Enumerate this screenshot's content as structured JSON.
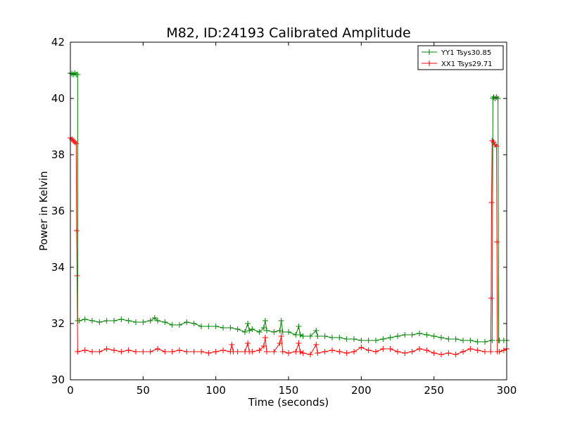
{
  "chart_data": {
    "type": "line",
    "title": "M82, ID:24193 Calibrated Amplitude",
    "xlabel": "Time (seconds)",
    "ylabel": "Power in Kelvin",
    "xlim": [
      0,
      300
    ],
    "ylim": [
      30,
      42
    ],
    "x_ticks": [
      0,
      50,
      100,
      150,
      200,
      250,
      300
    ],
    "y_ticks": [
      30,
      32,
      34,
      36,
      38,
      40,
      42
    ],
    "grid": false,
    "legend_position": "top-right",
    "marker": "+",
    "series": [
      {
        "name": "YY1 Tsys30.85",
        "color": "#008000",
        "points": [
          [
            0,
            40.9
          ],
          [
            1,
            40.88
          ],
          [
            2,
            40.85
          ],
          [
            3,
            40.9
          ],
          [
            4,
            40.85
          ],
          [
            5,
            40.85
          ],
          [
            5,
            32.1
          ],
          [
            6,
            32.1
          ],
          [
            10,
            32.15
          ],
          [
            15,
            32.1
          ],
          [
            20,
            32.05
          ],
          [
            25,
            32.1
          ],
          [
            30,
            32.1
          ],
          [
            35,
            32.15
          ],
          [
            40,
            32.1
          ],
          [
            45,
            32.05
          ],
          [
            50,
            32.05
          ],
          [
            55,
            32.1
          ],
          [
            58,
            32.2
          ],
          [
            60,
            32.1
          ],
          [
            65,
            32.05
          ],
          [
            70,
            31.95
          ],
          [
            75,
            31.95
          ],
          [
            80,
            32.05
          ],
          [
            85,
            32.0
          ],
          [
            90,
            31.9
          ],
          [
            95,
            31.9
          ],
          [
            100,
            31.9
          ],
          [
            105,
            31.85
          ],
          [
            110,
            31.85
          ],
          [
            115,
            31.8
          ],
          [
            120,
            31.7
          ],
          [
            122,
            32.0
          ],
          [
            123,
            31.75
          ],
          [
            125,
            31.8
          ],
          [
            130,
            31.7
          ],
          [
            133,
            31.85
          ],
          [
            134,
            32.1
          ],
          [
            135,
            31.75
          ],
          [
            140,
            31.7
          ],
          [
            144,
            31.75
          ],
          [
            145,
            32.1
          ],
          [
            146,
            31.7
          ],
          [
            150,
            31.7
          ],
          [
            155,
            31.6
          ],
          [
            157,
            31.9
          ],
          [
            158,
            31.6
          ],
          [
            160,
            31.55
          ],
          [
            165,
            31.55
          ],
          [
            169,
            31.75
          ],
          [
            170,
            31.55
          ],
          [
            175,
            31.55
          ],
          [
            180,
            31.5
          ],
          [
            185,
            31.5
          ],
          [
            190,
            31.45
          ],
          [
            195,
            31.45
          ],
          [
            200,
            31.4
          ],
          [
            205,
            31.4
          ],
          [
            210,
            31.4
          ],
          [
            215,
            31.45
          ],
          [
            220,
            31.5
          ],
          [
            225,
            31.55
          ],
          [
            230,
            31.6
          ],
          [
            235,
            31.6
          ],
          [
            240,
            31.65
          ],
          [
            245,
            31.6
          ],
          [
            250,
            31.55
          ],
          [
            255,
            31.5
          ],
          [
            260,
            31.45
          ],
          [
            265,
            31.45
          ],
          [
            270,
            31.4
          ],
          [
            275,
            31.4
          ],
          [
            280,
            31.35
          ],
          [
            285,
            31.35
          ],
          [
            290,
            31.4
          ],
          [
            290.5,
            40.0
          ],
          [
            291,
            40.05
          ],
          [
            292,
            40.0
          ],
          [
            293,
            40.05
          ],
          [
            294,
            40.0
          ],
          [
            294.5,
            31.4
          ],
          [
            295,
            31.4
          ],
          [
            298,
            31.4
          ],
          [
            300,
            31.4
          ]
        ]
      },
      {
        "name": "XX1 Tsys29.71",
        "color": "#ff0000",
        "points": [
          [
            0,
            38.6
          ],
          [
            1,
            38.55
          ],
          [
            2,
            38.5
          ],
          [
            3,
            38.45
          ],
          [
            4,
            38.4
          ],
          [
            4.3,
            35.3
          ],
          [
            4.6,
            33.7
          ],
          [
            5,
            31.0
          ],
          [
            10,
            31.05
          ],
          [
            15,
            31.0
          ],
          [
            20,
            31.0
          ],
          [
            25,
            31.1
          ],
          [
            30,
            31.05
          ],
          [
            35,
            31.0
          ],
          [
            40,
            31.05
          ],
          [
            45,
            31.0
          ],
          [
            50,
            31.0
          ],
          [
            55,
            31.0
          ],
          [
            60,
            31.1
          ],
          [
            65,
            31.0
          ],
          [
            70,
            31.0
          ],
          [
            75,
            31.05
          ],
          [
            80,
            31.0
          ],
          [
            85,
            31.0
          ],
          [
            90,
            31.0
          ],
          [
            95,
            30.95
          ],
          [
            100,
            31.0
          ],
          [
            105,
            31.05
          ],
          [
            110,
            31.0
          ],
          [
            111,
            31.25
          ],
          [
            112,
            31.0
          ],
          [
            115,
            31.0
          ],
          [
            120,
            31.0
          ],
          [
            122,
            31.3
          ],
          [
            123,
            31.0
          ],
          [
            125,
            31.0
          ],
          [
            130,
            31.05
          ],
          [
            133,
            31.2
          ],
          [
            134,
            31.5
          ],
          [
            135,
            31.0
          ],
          [
            140,
            31.0
          ],
          [
            144,
            31.3
          ],
          [
            145,
            31.55
          ],
          [
            146,
            31.0
          ],
          [
            150,
            30.95
          ],
          [
            155,
            31.0
          ],
          [
            157,
            31.3
          ],
          [
            158,
            31.0
          ],
          [
            160,
            30.95
          ],
          [
            165,
            30.9
          ],
          [
            169,
            31.25
          ],
          [
            170,
            30.95
          ],
          [
            175,
            31.0
          ],
          [
            180,
            31.05
          ],
          [
            185,
            31.0
          ],
          [
            190,
            30.95
          ],
          [
            195,
            31.0
          ],
          [
            200,
            31.15
          ],
          [
            205,
            31.05
          ],
          [
            210,
            31.0
          ],
          [
            215,
            31.1
          ],
          [
            220,
            31.1
          ],
          [
            225,
            31.0
          ],
          [
            230,
            30.95
          ],
          [
            235,
            31.0
          ],
          [
            240,
            31.1
          ],
          [
            245,
            31.05
          ],
          [
            250,
            30.95
          ],
          [
            255,
            30.9
          ],
          [
            260,
            30.95
          ],
          [
            265,
            30.9
          ],
          [
            270,
            31.0
          ],
          [
            275,
            31.1
          ],
          [
            280,
            31.05
          ],
          [
            285,
            31.0
          ],
          [
            289,
            31.0
          ],
          [
            289.3,
            32.9
          ],
          [
            289.6,
            36.3
          ],
          [
            290,
            38.5
          ],
          [
            291,
            38.45
          ],
          [
            292,
            38.35
          ],
          [
            293,
            38.3
          ],
          [
            293.3,
            34.9
          ],
          [
            293.6,
            31.0
          ],
          [
            295,
            31.0
          ],
          [
            298,
            31.05
          ],
          [
            300,
            31.1
          ]
        ]
      }
    ]
  }
}
